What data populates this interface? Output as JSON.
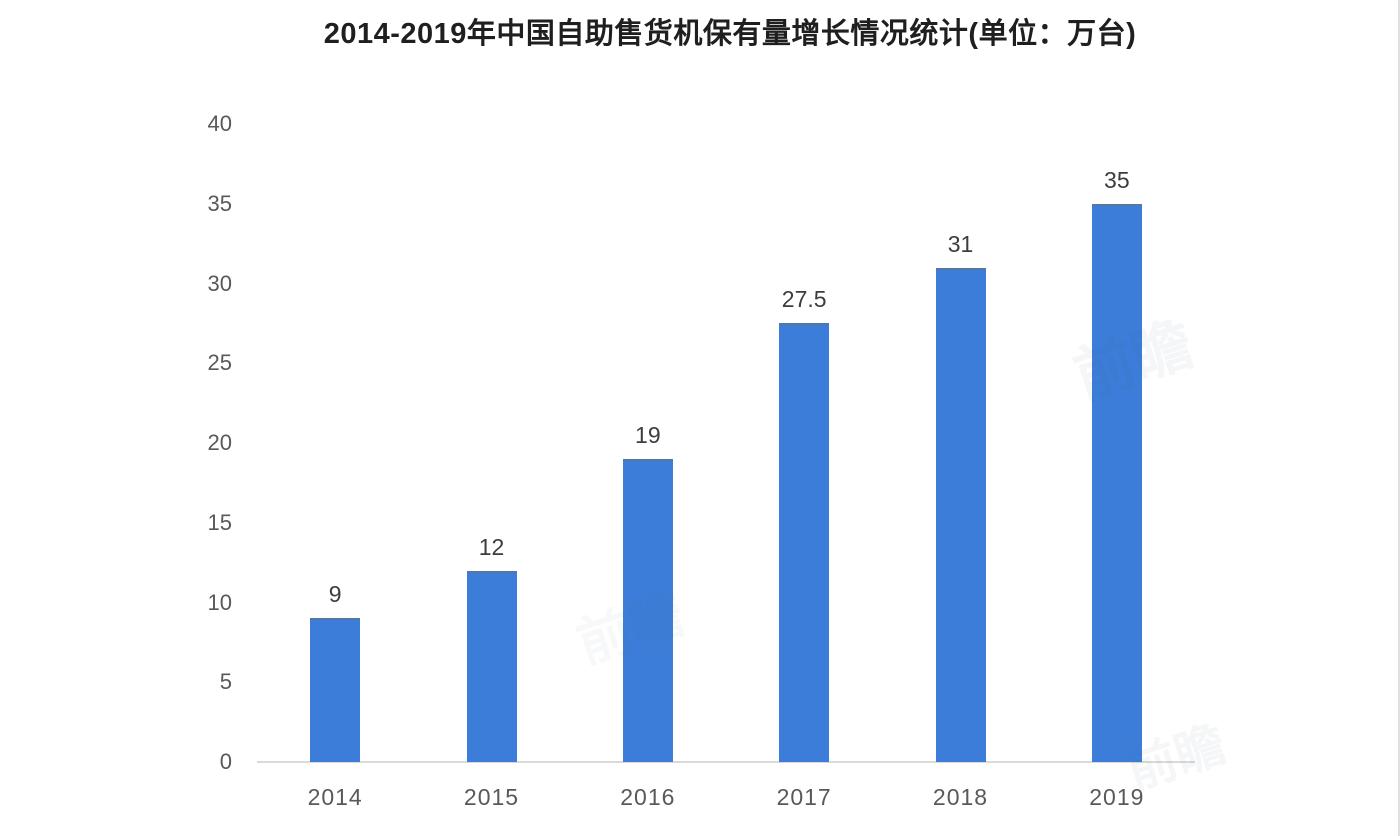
{
  "chart_data": {
    "type": "bar",
    "title": "2014-2019年中国自助售货机保有量增长情况统计(单位：万台)",
    "categories": [
      "2014",
      "2015",
      "2016",
      "2017",
      "2018",
      "2019"
    ],
    "values": [
      9,
      12,
      19,
      27.5,
      31,
      35
    ],
    "value_labels": [
      "9",
      "12",
      "19",
      "27.5",
      "31",
      "35"
    ],
    "xlabel": "",
    "ylabel": "",
    "ylim": [
      0,
      40
    ],
    "yticks": [
      0,
      5,
      10,
      15,
      20,
      25,
      30,
      35,
      40
    ],
    "grid": "off",
    "legend": "none",
    "bar_color": "#3b7dd8",
    "axis_line_color": "#d9d9d9",
    "tick_label_color": "#595959",
    "value_label_color": "#3d3d3d",
    "title_color": "#1f1f1f"
  },
  "watermark": {
    "text": "前瞻"
  }
}
